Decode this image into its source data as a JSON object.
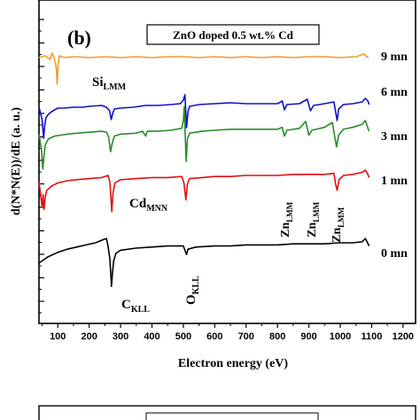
{
  "panel_label": "(b)",
  "title_box": "ZnO doped 0.5 wt.% Cd",
  "chart_data": {
    "type": "line",
    "title": "ZnO doped 0.5 wt.% Cd",
    "xlabel": "Electron energy  (eV)",
    "ylabel": "d(N*N(E))/dE (a. u.)",
    "xlim": [
      40,
      1240
    ],
    "x_ticks": [
      100,
      200,
      300,
      400,
      500,
      600,
      700,
      800,
      900,
      1000,
      1100,
      1200
    ],
    "y_ticks_labeled": false,
    "grid": false,
    "legend": "none",
    "series": [
      {
        "name": "9 mn",
        "color": "#f39a2e",
        "points": [
          [
            40,
            0
          ],
          [
            60,
            0.2
          ],
          [
            75,
            -0.2
          ],
          [
            82,
            0.5
          ],
          [
            88,
            0
          ],
          [
            95,
            -1.1
          ],
          [
            98,
            -3.0
          ],
          [
            101,
            -0.8
          ],
          [
            105,
            0.2
          ],
          [
            120,
            0
          ],
          [
            150,
            0.1
          ],
          [
            200,
            0
          ],
          [
            250,
            0.1
          ],
          [
            300,
            0
          ],
          [
            350,
            0.1
          ],
          [
            400,
            0
          ],
          [
            450,
            0.1
          ],
          [
            500,
            0.1
          ],
          [
            550,
            0
          ],
          [
            600,
            0.1
          ],
          [
            650,
            0
          ],
          [
            700,
            0.1
          ],
          [
            750,
            0
          ],
          [
            800,
            0.1
          ],
          [
            850,
            0
          ],
          [
            900,
            0.1
          ],
          [
            950,
            0.1
          ],
          [
            1000,
            0
          ],
          [
            1050,
            0.1
          ],
          [
            1075,
            0.4
          ],
          [
            1085,
            0.1
          ],
          [
            1090,
            0
          ]
        ]
      },
      {
        "name": "6 mn",
        "color": "#1010c8",
        "points": [
          [
            40,
            0.6
          ],
          [
            50,
            -0.8
          ],
          [
            55,
            -2.9
          ],
          [
            58,
            -1.5
          ],
          [
            62,
            -0.6
          ],
          [
            70,
            -0.2
          ],
          [
            80,
            0.1
          ],
          [
            90,
            0.3
          ],
          [
            100,
            0.5
          ],
          [
            120,
            0.5
          ],
          [
            150,
            0.6
          ],
          [
            180,
            0.6
          ],
          [
            200,
            0.7
          ],
          [
            240,
            0.8
          ],
          [
            255,
            0.6
          ],
          [
            265,
            0.2
          ],
          [
            270,
            -0.8
          ],
          [
            275,
            -0.1
          ],
          [
            280,
            0.4
          ],
          [
            300,
            0.5
          ],
          [
            340,
            0.6
          ],
          [
            380,
            0.8
          ],
          [
            420,
            0.8
          ],
          [
            460,
            0.9
          ],
          [
            490,
            1.0
          ],
          [
            500,
            1.4
          ],
          [
            505,
            2.0
          ],
          [
            507,
            0.7
          ],
          [
            510,
            -1.7
          ],
          [
            515,
            0.1
          ],
          [
            520,
            0.7
          ],
          [
            550,
            0.9
          ],
          [
            600,
            1.0
          ],
          [
            650,
            1.1
          ],
          [
            700,
            1.0
          ],
          [
            750,
            1.0
          ],
          [
            800,
            1.0
          ],
          [
            815,
            1.3
          ],
          [
            822,
            0.3
          ],
          [
            830,
            0.9
          ],
          [
            870,
            1.0
          ],
          [
            895,
            1.5
          ],
          [
            905,
            0.2
          ],
          [
            915,
            0.8
          ],
          [
            950,
            1.0
          ],
          [
            980,
            1.2
          ],
          [
            985,
            0.1
          ],
          [
            990,
            -0.9
          ],
          [
            995,
            0.4
          ],
          [
            1010,
            0.9
          ],
          [
            1040,
            1.0
          ],
          [
            1070,
            1.2
          ],
          [
            1080,
            1.6
          ],
          [
            1088,
            1.3
          ],
          [
            1092,
            0.9
          ]
        ]
      },
      {
        "name": "3 mn",
        "color": "#2a8a2a",
        "points": [
          [
            40,
            0.6
          ],
          [
            48,
            -1.0
          ],
          [
            52,
            -3.0
          ],
          [
            56,
            -1.6
          ],
          [
            60,
            -0.5
          ],
          [
            70,
            0.1
          ],
          [
            90,
            0.4
          ],
          [
            110,
            0.5
          ],
          [
            130,
            0.6
          ],
          [
            160,
            0.7
          ],
          [
            200,
            0.8
          ],
          [
            240,
            0.9
          ],
          [
            255,
            0.8
          ],
          [
            262,
            0.3
          ],
          [
            268,
            -1.2
          ],
          [
            273,
            -0.4
          ],
          [
            280,
            0.4
          ],
          [
            300,
            0.6
          ],
          [
            350,
            0.7
          ],
          [
            370,
            0.9
          ],
          [
            380,
            0.4
          ],
          [
            385,
            0.9
          ],
          [
            420,
            0.9
          ],
          [
            460,
            1.0
          ],
          [
            495,
            1.2
          ],
          [
            500,
            2.0
          ],
          [
            503,
            3.4
          ],
          [
            506,
            0.5
          ],
          [
            509,
            -2.2
          ],
          [
            513,
            0.1
          ],
          [
            520,
            0.7
          ],
          [
            560,
            0.9
          ],
          [
            600,
            1.0
          ],
          [
            650,
            1.1
          ],
          [
            700,
            1.1
          ],
          [
            750,
            1.1
          ],
          [
            800,
            1.1
          ],
          [
            815,
            1.3
          ],
          [
            822,
            0.4
          ],
          [
            830,
            1.0
          ],
          [
            870,
            1.2
          ],
          [
            890,
            1.9
          ],
          [
            900,
            0.5
          ],
          [
            910,
            1.0
          ],
          [
            950,
            1.3
          ],
          [
            975,
            1.8
          ],
          [
            983,
            0.2
          ],
          [
            988,
            -0.7
          ],
          [
            995,
            0.5
          ],
          [
            1010,
            1.1
          ],
          [
            1040,
            1.3
          ],
          [
            1070,
            1.6
          ],
          [
            1080,
            2.0
          ],
          [
            1088,
            1.2
          ],
          [
            1092,
            0.9
          ]
        ]
      },
      {
        "name": "1 mn",
        "color": "#e01010",
        "points": [
          [
            40,
            0.4
          ],
          [
            45,
            -0.8
          ],
          [
            50,
            -2.0
          ],
          [
            53,
            -0.8
          ],
          [
            56,
            -2.2
          ],
          [
            60,
            -1.0
          ],
          [
            65,
            -0.4
          ],
          [
            80,
            0.0
          ],
          [
            100,
            0.3
          ],
          [
            130,
            0.5
          ],
          [
            160,
            0.6
          ],
          [
            200,
            0.7
          ],
          [
            240,
            0.8
          ],
          [
            260,
            1.0
          ],
          [
            266,
            0.4
          ],
          [
            272,
            -2.4
          ],
          [
            276,
            -0.6
          ],
          [
            282,
            0.3
          ],
          [
            300,
            0.6
          ],
          [
            350,
            0.7
          ],
          [
            400,
            0.8
          ],
          [
            450,
            0.8
          ],
          [
            495,
            0.9
          ],
          [
            502,
            0.3
          ],
          [
            508,
            -1.3
          ],
          [
            513,
            0.2
          ],
          [
            520,
            0.7
          ],
          [
            560,
            0.8
          ],
          [
            600,
            0.9
          ],
          [
            650,
            0.9
          ],
          [
            700,
            1.0
          ],
          [
            750,
            1.0
          ],
          [
            800,
            1.0
          ],
          [
            850,
            1.1
          ],
          [
            900,
            1.1
          ],
          [
            950,
            1.1
          ],
          [
            980,
            1.2
          ],
          [
            985,
            0.2
          ],
          [
            990,
            -0.4
          ],
          [
            996,
            0.6
          ],
          [
            1010,
            1.0
          ],
          [
            1040,
            1.1
          ],
          [
            1070,
            1.3
          ],
          [
            1080,
            1.5
          ],
          [
            1088,
            1.1
          ],
          [
            1092,
            0.8
          ]
        ]
      },
      {
        "name": "0 mn",
        "color": "#000000",
        "points": [
          [
            40,
            -0.4
          ],
          [
            50,
            -0.2
          ],
          [
            70,
            0.2
          ],
          [
            100,
            0.6
          ],
          [
            130,
            0.9
          ],
          [
            160,
            1.1
          ],
          [
            190,
            1.3
          ],
          [
            220,
            1.5
          ],
          [
            245,
            1.8
          ],
          [
            255,
            1.9
          ],
          [
            260,
            1.2
          ],
          [
            266,
            0.0
          ],
          [
            271,
            -2.6
          ],
          [
            274,
            -1.4
          ],
          [
            278,
            -0.2
          ],
          [
            285,
            0.5
          ],
          [
            300,
            0.8
          ],
          [
            350,
            1.0
          ],
          [
            400,
            1.1
          ],
          [
            450,
            1.2
          ],
          [
            500,
            1.2
          ],
          [
            505,
            0.8
          ],
          [
            510,
            0.4
          ],
          [
            515,
            0.9
          ],
          [
            540,
            1.1
          ],
          [
            600,
            1.2
          ],
          [
            650,
            1.2
          ],
          [
            700,
            1.3
          ],
          [
            750,
            1.3
          ],
          [
            800,
            1.3
          ],
          [
            850,
            1.4
          ],
          [
            900,
            1.4
          ],
          [
            950,
            1.4
          ],
          [
            1000,
            1.5
          ],
          [
            1040,
            1.5
          ],
          [
            1070,
            1.6
          ],
          [
            1080,
            1.9
          ],
          [
            1087,
            1.5
          ],
          [
            1092,
            1.2
          ]
        ]
      }
    ],
    "trace_labels": [
      "9 mn",
      "6 mn",
      "3 mn",
      "1 mn",
      "0 mn"
    ],
    "annotations": [
      {
        "main": "Si",
        "sub": "LMM"
      },
      {
        "main": "Cd",
        "sub": "MNN"
      },
      {
        "main": "C",
        "sub": "KLL"
      },
      {
        "main": "O",
        "sub": "KLL"
      },
      {
        "main": "Zn",
        "sub": "LMM"
      },
      {
        "main": "Zn",
        "sub": "LMM"
      },
      {
        "main": "Zn",
        "sub": "LMM"
      }
    ]
  }
}
